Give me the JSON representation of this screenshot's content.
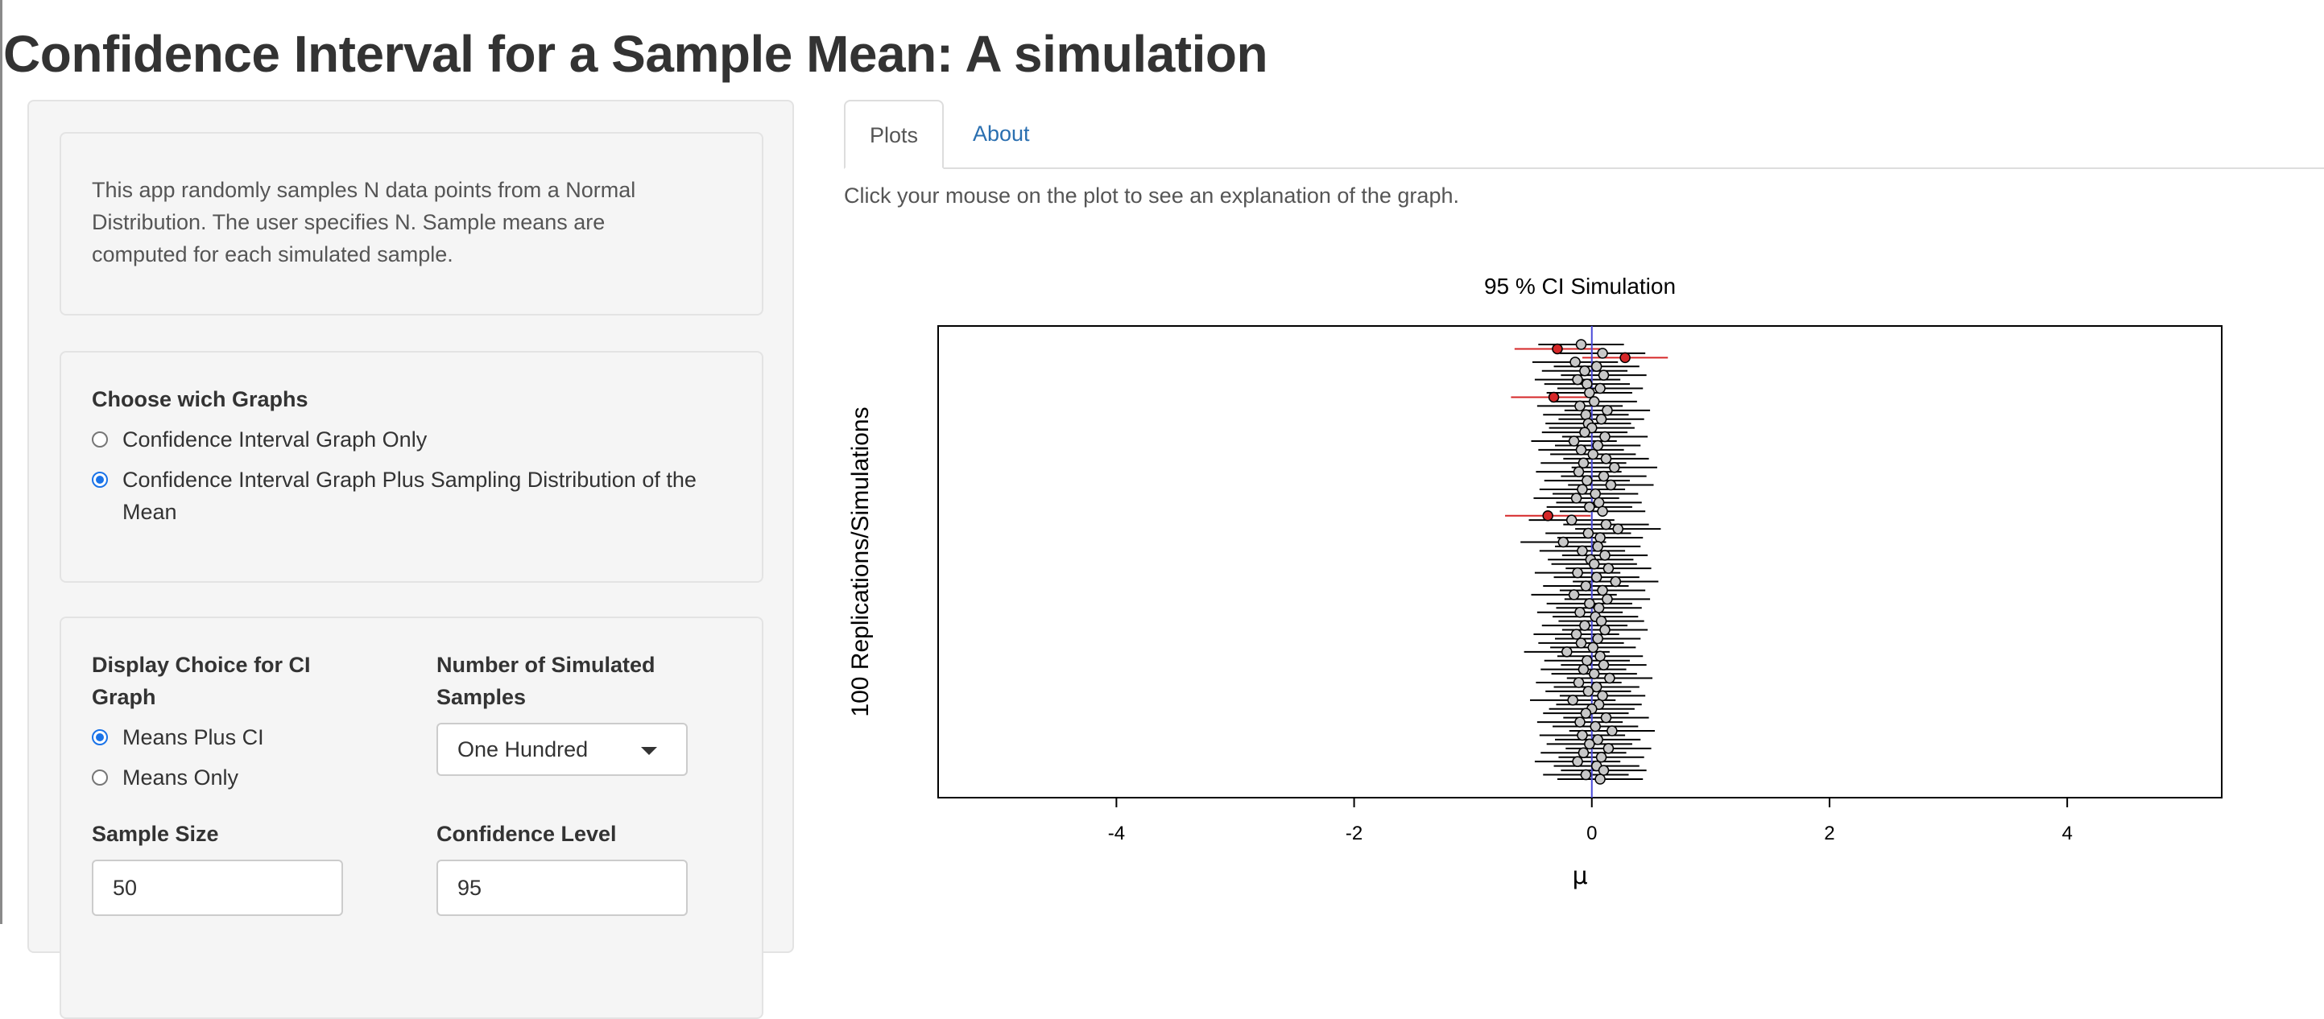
{
  "app": {
    "title": "Confidence Interval for a Sample Mean: A simulation"
  },
  "sidebar": {
    "description": {
      "line1": "This app randomly samples N data points from a Normal",
      "line2": "Distribution. The user specifies N. Sample means are",
      "line3": "computed for each simulated sample."
    },
    "graph_choice": {
      "label": "Choose wich Graphs",
      "options": [
        {
          "label": "Confidence Interval Graph Only",
          "checked": false
        },
        {
          "label_line1": "Confidence Interval Graph Plus Sampling Distribution of the",
          "label_line2": "Mean",
          "checked": true
        }
      ]
    },
    "display_choice": {
      "label_line1": "Display Choice for CI",
      "label_line2": "Graph",
      "options": [
        {
          "label": "Means Plus CI",
          "checked": true
        },
        {
          "label": "Means Only",
          "checked": false
        }
      ]
    },
    "num_samples": {
      "label_line1": "Number of Simulated",
      "label_line2": "Samples",
      "value": "One Hundred"
    },
    "sample_size": {
      "label": "Sample Size",
      "value": "50"
    },
    "confidence_level": {
      "label": "Confidence Level",
      "value": "95"
    }
  },
  "tabs": [
    {
      "label": "Plots",
      "active": true
    },
    {
      "label": "About",
      "active": false
    }
  ],
  "main": {
    "hint": "Click your mouse on the plot to see an explanation of the graph."
  },
  "colors": {
    "accent": "#1a73e8",
    "link": "#2a6fb0",
    "miss": "#d62728",
    "mu_line": "#4a4ad8",
    "point_fill": "#c8c8c8"
  },
  "chart_data": {
    "type": "scatter",
    "title": "95 % CI Simulation",
    "xlabel": "μ",
    "ylabel": "100 Replications/Simulations",
    "xlim": [
      -5.5,
      5.3
    ],
    "ylim": [
      0,
      100
    ],
    "x_ticks": [
      "-4",
      "-2",
      "0",
      "2",
      "4"
    ],
    "x_tick_values": [
      -4,
      -2,
      0,
      2,
      4
    ],
    "true_mean": 0,
    "means": [
      -0.09,
      -0.29,
      0.09,
      0.28,
      -0.14,
      0.04,
      -0.06,
      0.1,
      -0.12,
      -0.04,
      0.07,
      -0.02,
      -0.32,
      0.02,
      -0.1,
      0.13,
      -0.05,
      0.08,
      -0.03,
      0.0,
      -0.06,
      0.11,
      -0.15,
      0.05,
      -0.09,
      0.01,
      0.12,
      -0.07,
      0.19,
      -0.11,
      0.1,
      -0.04,
      0.16,
      -0.08,
      0.03,
      -0.13,
      0.06,
      -0.02,
      0.09,
      -0.37,
      -0.17,
      0.12,
      0.22,
      -0.03,
      0.07,
      -0.24,
      0.05,
      -0.08,
      0.11,
      -0.01,
      0.02,
      0.14,
      -0.12,
      0.04,
      0.2,
      -0.05,
      0.09,
      -0.15,
      0.13,
      -0.02,
      0.06,
      -0.1,
      0.03,
      0.08,
      -0.06,
      0.11,
      -0.13,
      0.05,
      -0.09,
      0.01,
      -0.21,
      0.07,
      -0.04,
      0.1,
      -0.07,
      0.02,
      0.15,
      -0.11,
      0.04,
      -0.03,
      0.09,
      -0.16,
      0.06,
      0.0,
      -0.05,
      0.12,
      -0.1,
      0.03,
      0.17,
      -0.08,
      0.05,
      -0.02,
      0.14,
      -0.07,
      0.08,
      -0.12,
      0.04,
      0.1,
      -0.05,
      0.07
    ],
    "half_width": 0.36,
    "missed": [
      1,
      3,
      12,
      39
    ]
  }
}
